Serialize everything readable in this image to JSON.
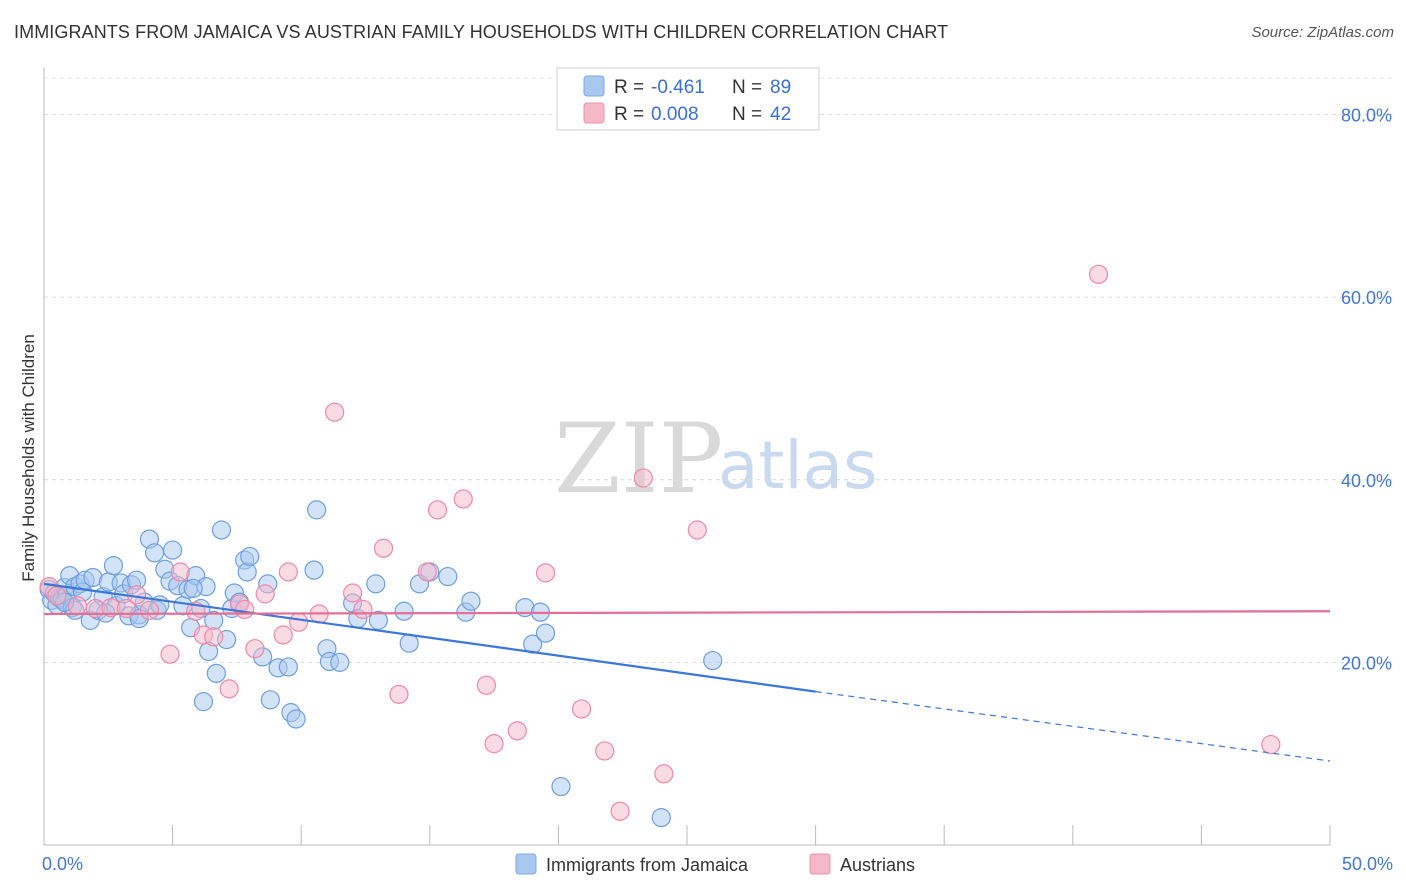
{
  "title": "IMMIGRANTS FROM JAMAICA VS AUSTRIAN FAMILY HOUSEHOLDS WITH CHILDREN CORRELATION CHART",
  "source": "Source: ZipAtlas.com",
  "watermark": {
    "zip": "ZIP",
    "atlas": "atlas"
  },
  "legend": {
    "rows": [
      {
        "r_label": "R =",
        "r_value": "-0.461",
        "n_label": "N =",
        "n_value": "89",
        "color": "#a8c8f0"
      },
      {
        "r_label": "R =",
        "r_value": "0.008",
        "n_label": "N =",
        "n_value": "42",
        "color": "#f5b8c8"
      }
    ]
  },
  "chart_data": {
    "type": "scatter",
    "title": "IMMIGRANTS FROM JAMAICA VS AUSTRIAN FAMILY HOUSEHOLDS WITH CHILDREN CORRELATION CHART",
    "xlabel": "",
    "ylabel": "Family Households with Children",
    "xlim": [
      0,
      50
    ],
    "ylim": [
      0,
      84
    ],
    "x_tick_labels": [
      "0.0%",
      "50.0%"
    ],
    "y_ticks": [
      20,
      40,
      60,
      80
    ],
    "y_tick_labels": [
      "20.0%",
      "40.0%",
      "60.0%",
      "80.0%"
    ],
    "grid": true,
    "series": [
      {
        "name": "Immigrants from Jamaica",
        "color": "#6f9fe0",
        "fill": "#a8c8f0",
        "trend": {
          "x0": 0,
          "y0": 28.6,
          "x1": 30,
          "y1": 16.8,
          "dashed_to_x": 50,
          "dashed_to_y": 9.2,
          "color": "#3b77d8"
        },
        "points": [
          [
            0.2,
            28.0
          ],
          [
            0.3,
            26.8
          ],
          [
            0.4,
            27.6
          ],
          [
            0.5,
            26.3
          ],
          [
            0.6,
            27.1
          ],
          [
            0.7,
            26.9
          ],
          [
            0.8,
            28.2
          ],
          [
            0.9,
            27.4
          ],
          [
            1.0,
            29.5
          ],
          [
            1.1,
            26.0
          ],
          [
            1.2,
            28.3
          ],
          [
            1.4,
            28.6
          ],
          [
            1.5,
            27.7
          ],
          [
            1.6,
            29.0
          ],
          [
            1.8,
            24.6
          ],
          [
            1.9,
            29.3
          ],
          [
            2.1,
            25.7
          ],
          [
            2.3,
            27.2
          ],
          [
            2.5,
            28.8
          ],
          [
            2.7,
            30.6
          ],
          [
            2.8,
            26.2
          ],
          [
            3.0,
            28.7
          ],
          [
            3.1,
            27.5
          ],
          [
            3.3,
            25.1
          ],
          [
            3.4,
            28.5
          ],
          [
            3.6,
            29.0
          ],
          [
            3.7,
            25.2
          ],
          [
            3.9,
            26.6
          ],
          [
            4.1,
            33.5
          ],
          [
            4.3,
            32.0
          ],
          [
            4.4,
            25.7
          ],
          [
            4.7,
            30.2
          ],
          [
            4.9,
            28.9
          ],
          [
            5.0,
            32.3
          ],
          [
            5.2,
            28.4
          ],
          [
            5.4,
            26.2
          ],
          [
            5.6,
            28.0
          ],
          [
            5.7,
            23.8
          ],
          [
            5.9,
            29.5
          ],
          [
            6.1,
            25.9
          ],
          [
            6.3,
            28.3
          ],
          [
            6.4,
            21.2
          ],
          [
            6.6,
            24.6
          ],
          [
            6.7,
            18.8
          ],
          [
            6.9,
            34.5
          ],
          [
            7.1,
            22.5
          ],
          [
            7.3,
            25.9
          ],
          [
            7.4,
            27.6
          ],
          [
            7.6,
            26.6
          ],
          [
            7.8,
            31.2
          ],
          [
            7.9,
            29.9
          ],
          [
            8.0,
            31.6
          ],
          [
            8.5,
            20.6
          ],
          [
            8.7,
            28.6
          ],
          [
            8.8,
            15.9
          ],
          [
            9.1,
            19.4
          ],
          [
            9.5,
            19.5
          ],
          [
            9.6,
            14.5
          ],
          [
            9.8,
            13.8
          ],
          [
            10.5,
            30.1
          ],
          [
            10.6,
            36.7
          ],
          [
            11.0,
            21.5
          ],
          [
            11.1,
            20.1
          ],
          [
            11.5,
            20.0
          ],
          [
            12.0,
            26.5
          ],
          [
            12.2,
            24.8
          ],
          [
            12.9,
            28.6
          ],
          [
            13.0,
            24.6
          ],
          [
            14.0,
            25.6
          ],
          [
            14.2,
            22.1
          ],
          [
            14.6,
            28.6
          ],
          [
            15.0,
            29.9
          ],
          [
            15.7,
            29.4
          ],
          [
            16.4,
            25.5
          ],
          [
            16.6,
            26.7
          ],
          [
            18.7,
            26.0
          ],
          [
            19.0,
            22.0
          ],
          [
            19.3,
            25.5
          ],
          [
            19.5,
            23.2
          ],
          [
            20.1,
            6.4
          ],
          [
            24.0,
            3.0
          ],
          [
            26.0,
            20.2
          ],
          [
            6.2,
            15.7
          ],
          [
            3.7,
            24.8
          ],
          [
            1.2,
            25.7
          ],
          [
            0.8,
            26.6
          ],
          [
            2.4,
            25.4
          ],
          [
            4.5,
            26.3
          ],
          [
            5.8,
            28.1
          ]
        ]
      },
      {
        "name": "Austrians",
        "color": "#ee88a8",
        "fill": "#f5b8c8",
        "trend": {
          "x0": 0,
          "y0": 25.3,
          "x1": 50,
          "y1": 25.6,
          "color": "#e46e94"
        },
        "points": [
          [
            0.2,
            28.3
          ],
          [
            0.5,
            27.3
          ],
          [
            1.3,
            26.2
          ],
          [
            2.0,
            25.9
          ],
          [
            2.6,
            26.0
          ],
          [
            3.2,
            25.9
          ],
          [
            3.6,
            27.4
          ],
          [
            4.1,
            25.7
          ],
          [
            4.9,
            20.9
          ],
          [
            5.3,
            29.9
          ],
          [
            5.9,
            25.6
          ],
          [
            6.2,
            23.0
          ],
          [
            6.6,
            22.8
          ],
          [
            7.2,
            17.1
          ],
          [
            7.6,
            26.4
          ],
          [
            8.2,
            21.5
          ],
          [
            8.6,
            27.5
          ],
          [
            9.3,
            23.0
          ],
          [
            9.5,
            29.9
          ],
          [
            9.9,
            24.4
          ],
          [
            10.7,
            25.3
          ],
          [
            11.3,
            47.4
          ],
          [
            12.0,
            27.6
          ],
          [
            12.4,
            25.8
          ],
          [
            13.2,
            32.5
          ],
          [
            13.8,
            16.5
          ],
          [
            14.9,
            29.9
          ],
          [
            15.3,
            36.7
          ],
          [
            16.3,
            37.9
          ],
          [
            17.2,
            17.5
          ],
          [
            17.5,
            11.1
          ],
          [
            18.4,
            12.5
          ],
          [
            19.5,
            29.8
          ],
          [
            20.9,
            14.9
          ],
          [
            21.8,
            10.3
          ],
          [
            22.4,
            3.7
          ],
          [
            23.3,
            40.2
          ],
          [
            24.1,
            7.8
          ],
          [
            25.4,
            34.5
          ],
          [
            41.0,
            62.5
          ],
          [
            47.7,
            11.0
          ],
          [
            7.8,
            25.8
          ]
        ]
      }
    ]
  },
  "bottom_legend": [
    {
      "label": "Immigrants from Jamaica",
      "color": "#a8c8f0"
    },
    {
      "label": "Austrians",
      "color": "#f5b8c8"
    }
  ]
}
